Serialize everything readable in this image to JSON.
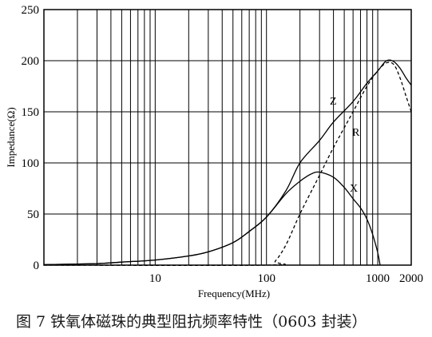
{
  "chart_data": {
    "type": "line",
    "xlabel": "Frequency(MHz)",
    "ylabel": "Impedance(Ω)",
    "x_scale": "log",
    "xlim": [
      1,
      2000
    ],
    "ylim": [
      0,
      250
    ],
    "grid": true,
    "y_ticks": [
      "0",
      "50",
      "100",
      "150",
      "200",
      "250"
    ],
    "x_ticks": [
      {
        "value": 10,
        "label": "10"
      },
      {
        "value": 100,
        "label": "100"
      },
      {
        "value": 1000,
        "label": "1000"
      },
      {
        "value": 2000,
        "label": "2000"
      }
    ],
    "series": [
      {
        "name": "Z",
        "style": "solid",
        "points": [
          [
            1,
            0.5
          ],
          [
            3,
            1.5
          ],
          [
            5,
            3
          ],
          [
            10,
            5
          ],
          [
            20,
            9
          ],
          [
            30,
            13
          ],
          [
            50,
            22
          ],
          [
            70,
            33
          ],
          [
            100,
            47
          ],
          [
            150,
            73
          ],
          [
            200,
            100
          ],
          [
            300,
            122
          ],
          [
            400,
            140
          ],
          [
            600,
            160
          ],
          [
            800,
            178
          ],
          [
            1000,
            190
          ],
          [
            1200,
            200
          ],
          [
            1400,
            199
          ],
          [
            1600,
            192
          ],
          [
            1800,
            183
          ],
          [
            2000,
            176
          ]
        ]
      },
      {
        "name": "R",
        "style": "dashed",
        "points": [
          [
            1,
            0
          ],
          [
            100,
            0
          ],
          [
            120,
            4
          ],
          [
            150,
            20
          ],
          [
            200,
            50
          ],
          [
            300,
            88
          ],
          [
            400,
            115
          ],
          [
            600,
            150
          ],
          [
            800,
            175
          ],
          [
            1000,
            190
          ],
          [
            1200,
            198
          ],
          [
            1400,
            196
          ],
          [
            1600,
            182
          ],
          [
            1800,
            165
          ],
          [
            2000,
            150
          ]
        ]
      },
      {
        "name": "X",
        "style": "solid",
        "points": [
          [
            1,
            0.5
          ],
          [
            3,
            1.5
          ],
          [
            5,
            3
          ],
          [
            10,
            5
          ],
          [
            20,
            9
          ],
          [
            30,
            13
          ],
          [
            50,
            22
          ],
          [
            70,
            33
          ],
          [
            100,
            47
          ],
          [
            150,
            70
          ],
          [
            200,
            82
          ],
          [
            250,
            89
          ],
          [
            300,
            91
          ],
          [
            400,
            86
          ],
          [
            500,
            76
          ],
          [
            600,
            65
          ],
          [
            700,
            56
          ],
          [
            800,
            45
          ],
          [
            900,
            30
          ],
          [
            1000,
            12
          ],
          [
            1050,
            0
          ]
        ]
      }
    ]
  },
  "curve_labels": {
    "z": "Z",
    "r": "R",
    "x": "X"
  },
  "caption": "图 7  铁氧体磁珠的典型阻抗频率特性（0603 封装）"
}
